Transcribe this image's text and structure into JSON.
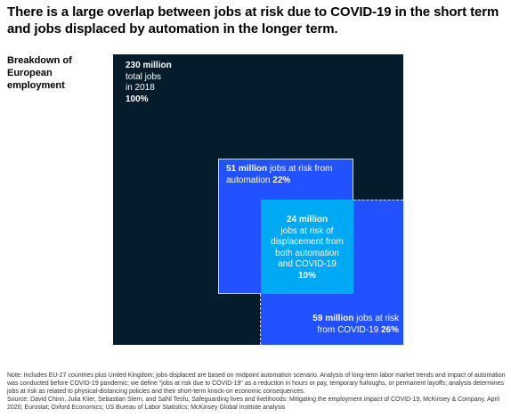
{
  "title": "There is a large overlap between jobs at risk due to COVID-19 in the short term and jobs displaced by automation in the longer term.",
  "side_label": "Breakdown of European employment",
  "chart_data": {
    "type": "area",
    "unit": "million jobs",
    "items": [
      {
        "id": "total",
        "value_text": "230 million",
        "value": 230,
        "label_lines": [
          "total jobs",
          "in 2018"
        ],
        "percent_text": "100%",
        "percent": 100,
        "color": "#051c2c"
      },
      {
        "id": "automation",
        "value_text": "51 million",
        "value": 51,
        "label": "jobs at risk from automation",
        "percent_text": "22%",
        "percent": 22,
        "color": "#2251ff"
      },
      {
        "id": "both",
        "value_text": "24 million",
        "value": 24,
        "label_lines": [
          "jobs at risk of",
          "displacement from",
          "both automation",
          "and COVID-19"
        ],
        "percent_text": "10%",
        "percent": 10,
        "color": "#00a9f4"
      },
      {
        "id": "covid",
        "value_text": "59 million",
        "value": 59,
        "label": "jobs at risk from COVID-19",
        "percent_text": "26%",
        "percent": 26,
        "color": "#2251ff"
      }
    ]
  },
  "notes": {
    "line1": "Note: Includes EU-27 countries plus United Kingdom; jobs displaced are based on midpoint automation scenario. Analysis of long-term labor market trends and impact of automation was conducted before COVID-19 pandemic; we define \"jobs at risk due to COVID-19\" as a reduction in hours or pay, temporary furloughs, or permanent layoffs; analysis determines jobs at risk as related to physical-distancing policies and their short-term knock-on economic consequences.",
    "line2": "Source: David Chinn, Julia Klier, Sebastian Stern, and Sahil Tesfu, Safeguarding lives and livelihoods: Mitigating the employment impact of COVID-19, McKinsey & Company, April 2020; Eurostat; Oxford Economics; US Bureau of Labor Statistics; McKinsey Global Institute analysis"
  }
}
